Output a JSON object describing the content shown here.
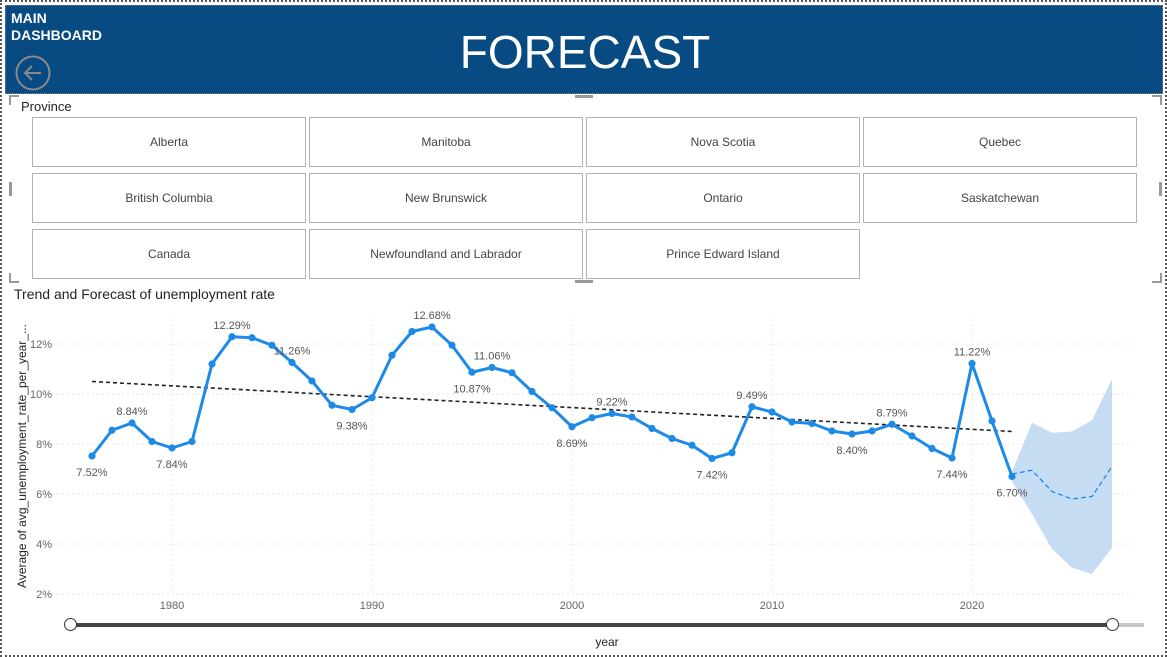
{
  "header": {
    "main_link_line1": "MAIN",
    "main_link_line2": "DASHBOARD",
    "back_icon": "back-arrow-icon",
    "title": "FORECAST",
    "bg_color": "#084a82"
  },
  "slicer": {
    "title": "Province",
    "options": [
      "Alberta",
      "Manitoba",
      "Nova Scotia",
      "Quebec",
      "British Columbia",
      "New Brunswick",
      "Ontario",
      "Saskatchewan",
      "Canada",
      "Newfoundland and Labrador",
      "Prince Edward Island"
    ]
  },
  "chart_data": {
    "type": "line",
    "title": "Trend and Forecast of unemployment rate",
    "xlabel": "year",
    "ylabel": "Average of avg_unemployment_rate_per_year_...",
    "xlim": [
      1974,
      2028
    ],
    "ylim": [
      2,
      13
    ],
    "x_ticks": [
      1980,
      1990,
      2000,
      2010,
      2020
    ],
    "y_ticks": [
      2,
      4,
      6,
      8,
      10,
      12
    ],
    "y_tick_labels": [
      "2%",
      "4%",
      "6%",
      "8%",
      "10%",
      "12%"
    ],
    "grid": true,
    "series": [
      {
        "x": [
          1976,
          1977,
          1978,
          1979,
          1980,
          1981,
          1982,
          1983,
          1984,
          1985,
          1986,
          1987,
          1988,
          1989,
          1990,
          1991,
          1992,
          1993,
          1994,
          1995,
          1996,
          1997,
          1998,
          1999,
          2000,
          2001,
          2002,
          2003,
          2004,
          2005,
          2006,
          2007,
          2008,
          2009,
          2010,
          2011,
          2012,
          2013,
          2014,
          2015,
          2016,
          2017,
          2018,
          2019,
          2020,
          2021,
          2022
        ],
        "values": [
          7.52,
          8.55,
          8.84,
          8.1,
          7.84,
          8.1,
          11.2,
          12.29,
          12.25,
          11.95,
          11.26,
          10.52,
          9.55,
          9.38,
          9.85,
          11.55,
          12.5,
          12.68,
          11.95,
          10.87,
          11.06,
          10.85,
          10.1,
          9.45,
          8.69,
          9.05,
          9.22,
          9.08,
          8.62,
          8.22,
          7.95,
          7.42,
          7.65,
          9.49,
          9.28,
          8.88,
          8.82,
          8.52,
          8.4,
          8.52,
          8.79,
          8.32,
          7.82,
          7.44,
          11.22,
          8.92,
          6.7
        ],
        "color": "#1e8ae8"
      }
    ],
    "data_labels": [
      {
        "x": 1976,
        "y": 7.52,
        "text": "7.52%"
      },
      {
        "x": 1978,
        "y": 8.84,
        "text": "8.84%"
      },
      {
        "x": 1980,
        "y": 7.84,
        "text": "7.84%"
      },
      {
        "x": 1983,
        "y": 12.29,
        "text": "12.29%"
      },
      {
        "x": 1986,
        "y": 11.26,
        "text": "11.26%"
      },
      {
        "x": 1989,
        "y": 9.38,
        "text": "9.38%"
      },
      {
        "x": 1993,
        "y": 12.68,
        "text": "12.68%"
      },
      {
        "x": 1995,
        "y": 10.87,
        "text": "10.87%"
      },
      {
        "x": 1996,
        "y": 11.06,
        "text": "11.06%"
      },
      {
        "x": 2000,
        "y": 8.69,
        "text": "8.69%"
      },
      {
        "x": 2002,
        "y": 9.22,
        "text": "9.22%"
      },
      {
        "x": 2007,
        "y": 7.42,
        "text": "7.42%"
      },
      {
        "x": 2009,
        "y": 9.49,
        "text": "9.49%"
      },
      {
        "x": 2014,
        "y": 8.4,
        "text": "8.40%"
      },
      {
        "x": 2016,
        "y": 8.79,
        "text": "8.79%"
      },
      {
        "x": 2019,
        "y": 7.44,
        "text": "7.44%"
      },
      {
        "x": 2020,
        "y": 11.22,
        "text": "11.22%"
      },
      {
        "x": 2022,
        "y": 6.7,
        "text": "6.70%"
      }
    ],
    "trend_line": {
      "x": [
        1976,
        2022
      ],
      "y": [
        10.5,
        8.5
      ],
      "color": "#222222"
    },
    "forecast": {
      "x": [
        2022,
        2023,
        2024,
        2025,
        2026,
        2027
      ],
      "values": [
        6.8,
        6.95,
        6.1,
        5.8,
        5.9,
        7.1
      ],
      "upper": [
        6.9,
        8.85,
        8.45,
        8.5,
        8.95,
        10.6
      ],
      "lower": [
        6.5,
        5.2,
        3.8,
        3.05,
        2.8,
        3.85
      ],
      "color": "#1e8ae8",
      "band_color": "#c6dcf3"
    }
  }
}
